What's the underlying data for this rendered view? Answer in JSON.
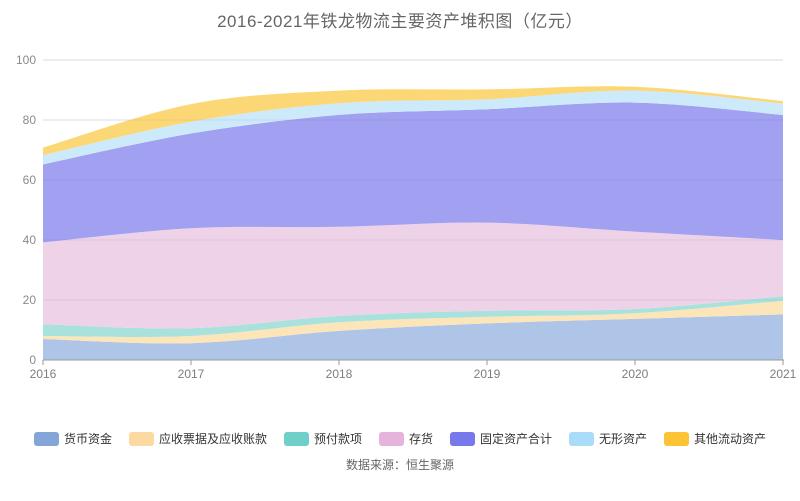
{
  "title": "2016-2021年铁龙物流主要资产堆积图（亿元）",
  "source": "数据来源：恒生聚源",
  "chart_data": {
    "type": "area",
    "stacked": true,
    "title": "2016-2021年铁龙物流主要资产堆积图（亿元）",
    "x": [
      2016,
      2017,
      2018,
      2019,
      2020,
      2021
    ],
    "series": [
      {
        "name": "货币资金",
        "values": [
          7.0,
          5.6,
          9.7,
          12.2,
          13.7,
          15.2
        ],
        "legend_color": "#84a5d8",
        "fill_color": "#aec5e8"
      },
      {
        "name": "应收票据及应收账款",
        "values": [
          1.0,
          2.4,
          2.9,
          2.2,
          1.9,
          4.5
        ],
        "legend_color": "#fbd9a1",
        "fill_color": "#fce5b8"
      },
      {
        "name": "预付款项",
        "values": [
          3.9,
          2.6,
          2.1,
          2.0,
          1.4,
          1.6
        ],
        "legend_color": "#6ed0c8",
        "fill_color": "#a9e2dc"
      },
      {
        "name": "存货",
        "values": [
          27.3,
          33.3,
          29.7,
          29.4,
          25.8,
          18.7
        ],
        "legend_color": "#e6b3dd",
        "fill_color": "#eed3e8"
      },
      {
        "name": "固定资产合计",
        "values": [
          26.0,
          31.6,
          37.3,
          37.8,
          43.0,
          41.7
        ],
        "legend_color": "#7779ea",
        "fill_color": "#a1a0f1"
      },
      {
        "name": "无形资产",
        "values": [
          3.1,
          3.9,
          3.9,
          3.3,
          4.0,
          3.8
        ],
        "legend_color": "#a9dcf9",
        "fill_color": "#cdeafb"
      },
      {
        "name": "其他流动资产",
        "values": [
          2.5,
          5.9,
          4.2,
          3.3,
          1.3,
          0.8
        ],
        "legend_color": "#fcc434",
        "fill_color": "#fcd775"
      }
    ],
    "stack_totals": [
      70.8,
      85.3,
      89.8,
      90.2,
      91.1,
      86.3
    ],
    "ylim": [
      0,
      100
    ],
    "yticks": [
      0,
      20,
      40,
      60,
      80,
      100
    ],
    "xticks": [
      "2016",
      "2017",
      "2018",
      "2019",
      "2020",
      "2021"
    ],
    "grid": true,
    "smooth": true,
    "legend_position": "bottom",
    "axis_color": "#999999",
    "gridline_color": "#e9e9f4"
  }
}
